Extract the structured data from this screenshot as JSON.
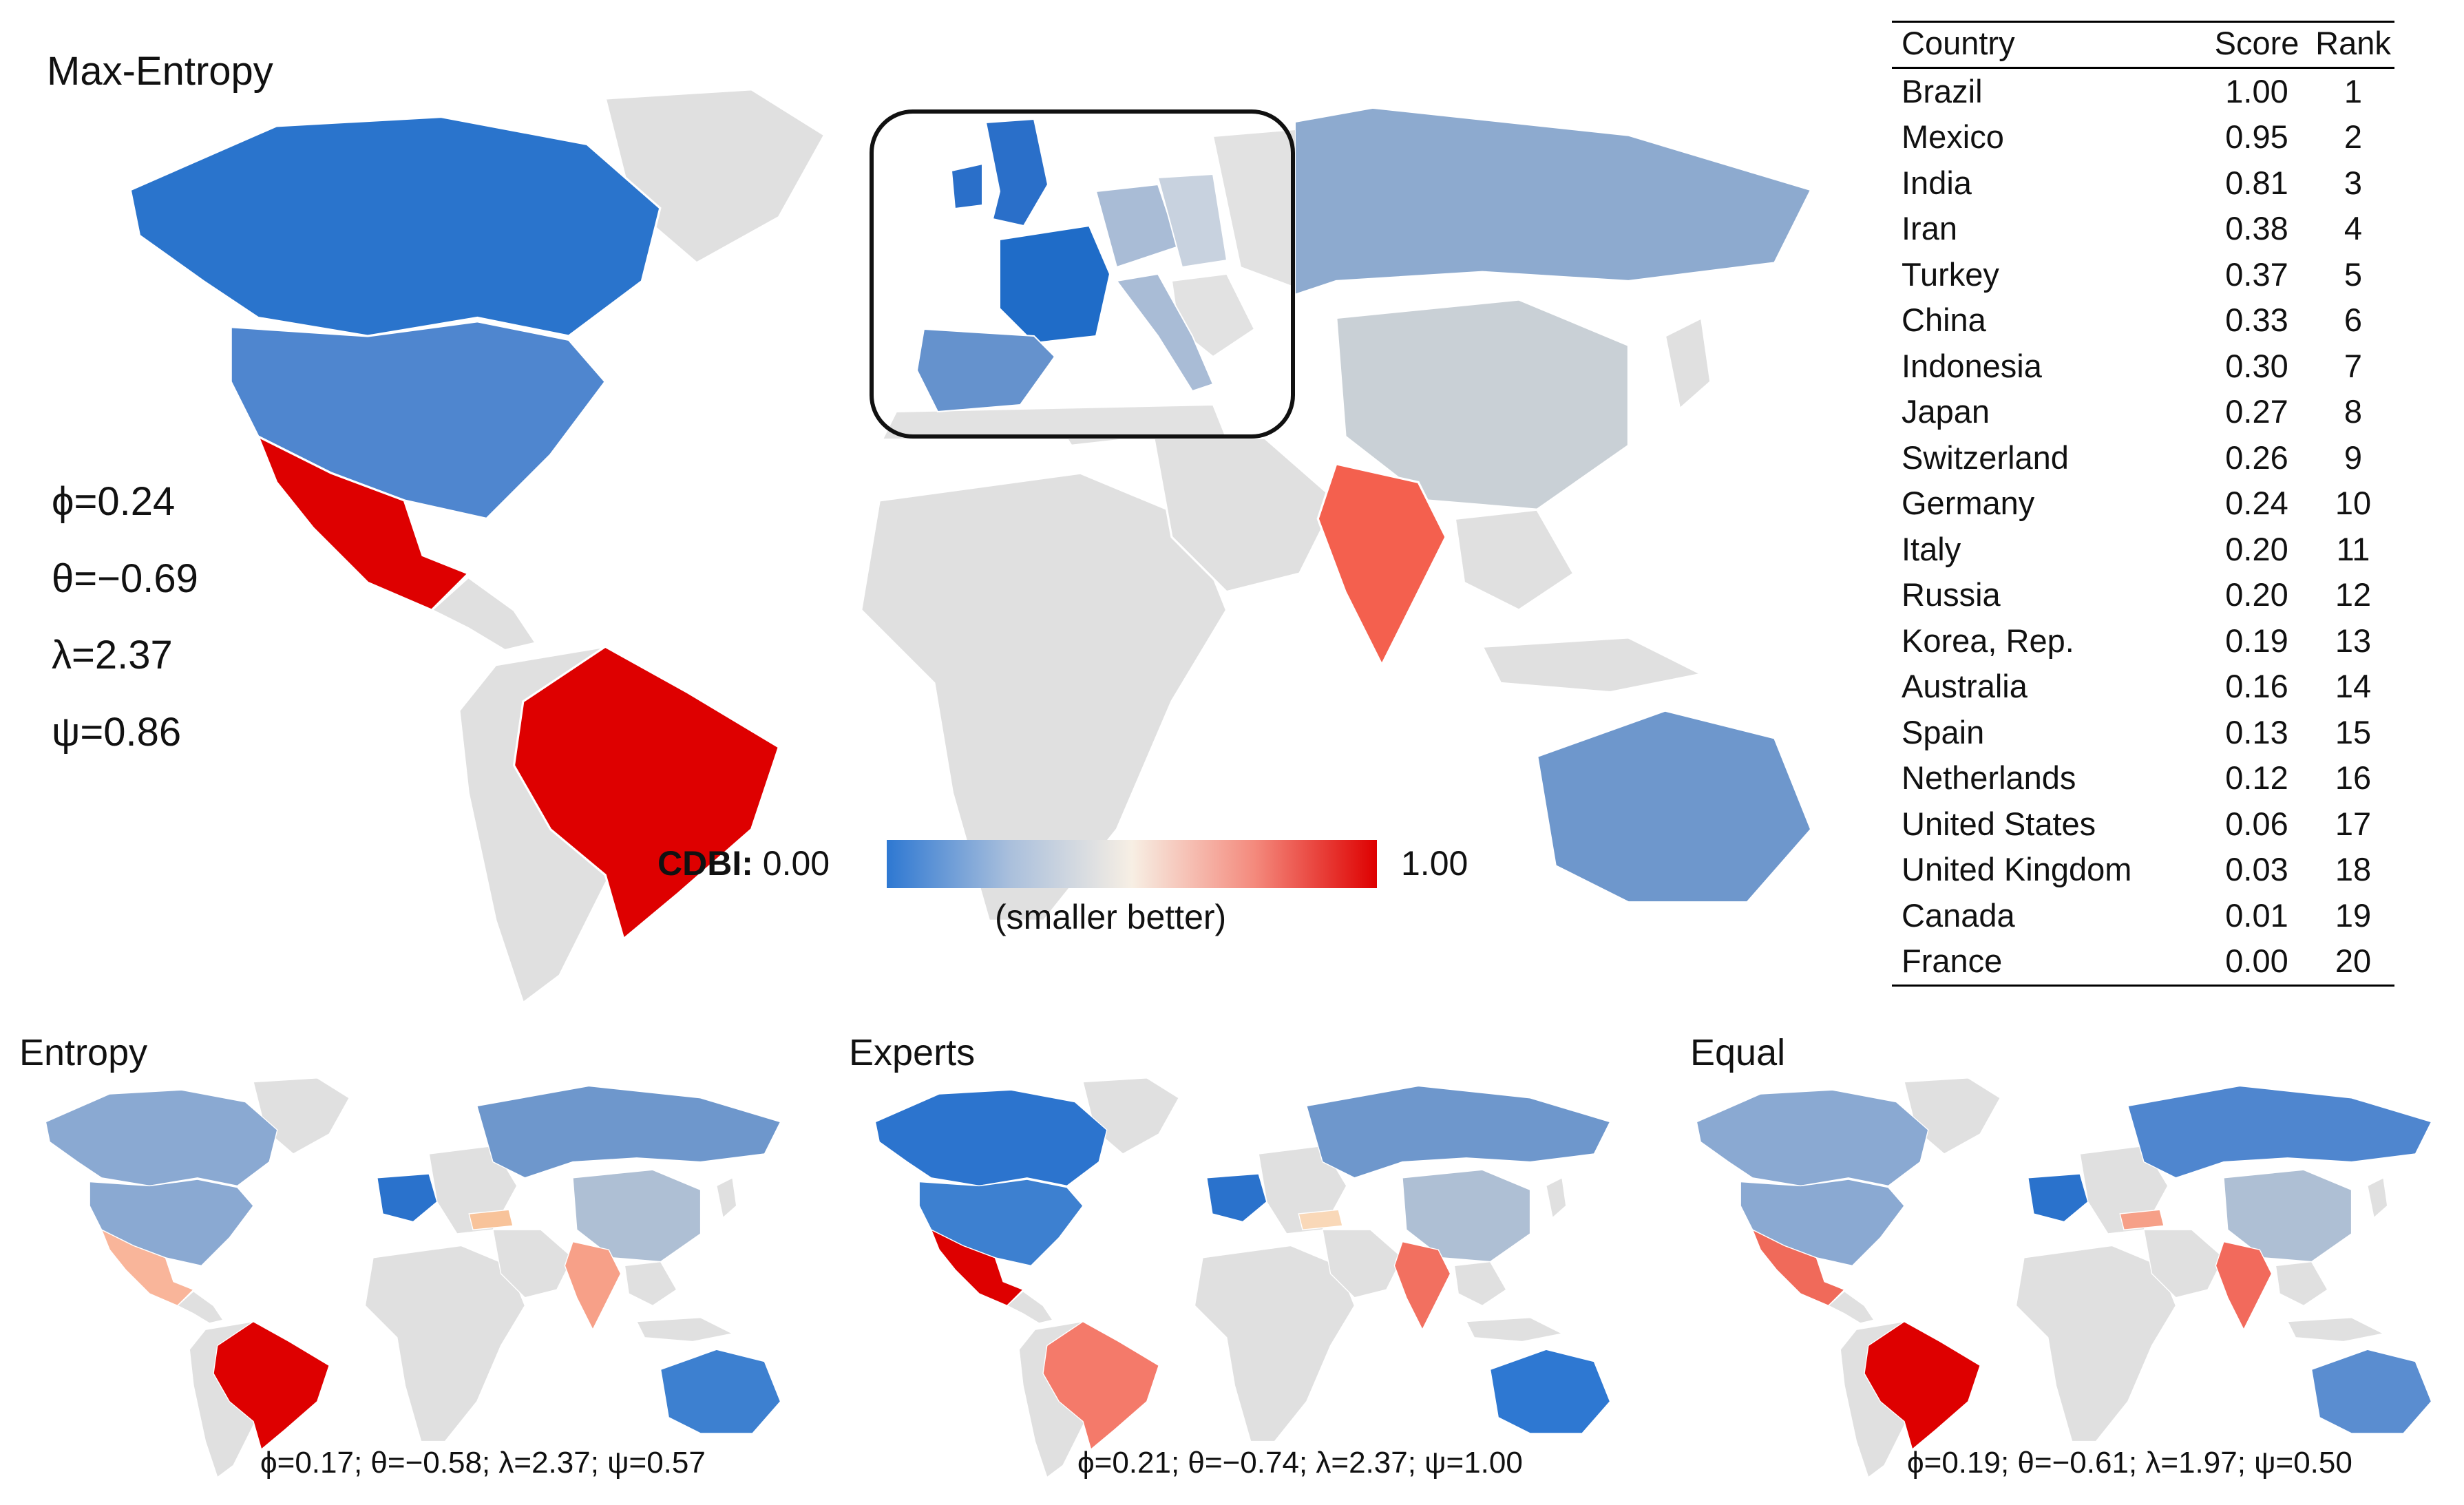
{
  "main_map": {
    "title": "Max-Entropy",
    "params": [
      "ϕ=0.24",
      "θ=−0.69",
      "λ=2.37",
      "ψ=0.86"
    ]
  },
  "legend": {
    "label": "CDBI:",
    "min": "0.00",
    "max": "1.00",
    "note": "(smaller better)",
    "gradient_colors": [
      "#2e78d2",
      "#a9bfdc",
      "#f7efe4",
      "#f48a7d",
      "#de0000"
    ]
  },
  "ranking_table": {
    "headers": [
      "Country",
      "Score",
      "Rank"
    ],
    "rows": [
      {
        "country": "Brazil",
        "score": "1.00",
        "rank": "1"
      },
      {
        "country": "Mexico",
        "score": "0.95",
        "rank": "2"
      },
      {
        "country": "India",
        "score": "0.81",
        "rank": "3"
      },
      {
        "country": "Iran",
        "score": "0.38",
        "rank": "4"
      },
      {
        "country": "Turkey",
        "score": "0.37",
        "rank": "5"
      },
      {
        "country": "China",
        "score": "0.33",
        "rank": "6"
      },
      {
        "country": "Indonesia",
        "score": "0.30",
        "rank": "7"
      },
      {
        "country": "Japan",
        "score": "0.27",
        "rank": "8"
      },
      {
        "country": "Switzerland",
        "score": "0.26",
        "rank": "9"
      },
      {
        "country": "Germany",
        "score": "0.24",
        "rank": "10"
      },
      {
        "country": "Italy",
        "score": "0.20",
        "rank": "11"
      },
      {
        "country": "Russia",
        "score": "0.20",
        "rank": "12"
      },
      {
        "country": "Korea, Rep.",
        "score": "0.19",
        "rank": "13"
      },
      {
        "country": "Australia",
        "score": "0.16",
        "rank": "14"
      },
      {
        "country": "Spain",
        "score": "0.13",
        "rank": "15"
      },
      {
        "country": "Netherlands",
        "score": "0.12",
        "rank": "16"
      },
      {
        "country": "United States",
        "score": "0.06",
        "rank": "17"
      },
      {
        "country": "United Kingdom",
        "score": "0.03",
        "rank": "18"
      },
      {
        "country": "Canada",
        "score": "0.01",
        "rank": "19"
      },
      {
        "country": "France",
        "score": "0.00",
        "rank": "20"
      }
    ]
  },
  "small_maps": [
    {
      "title": "Entropy",
      "params": "ϕ=0.17; θ=−0.58; λ=2.37; ψ=0.57",
      "colors": {
        "na_north": "#8aa9d2",
        "na_south": "#8aa9d2",
        "mexico": "#f9b59a",
        "south_america": "#e0e0e0",
        "brazil": "#de0000",
        "europe_west": "#2a72cc",
        "russia": "#6e97cc",
        "china": "#aebfd4",
        "india": "#f7a088",
        "turkey": "#f8c39a",
        "australia": "#3d80d0"
      }
    },
    {
      "title": "Experts",
      "params": "ϕ=0.21; θ=−0.74; λ=2.37; ψ=1.00",
      "colors": {
        "na_north": "#2c74ce",
        "na_south": "#3d80d0",
        "mexico": "#de0000",
        "south_america": "#e0e0e0",
        "brazil": "#f47a6a",
        "europe_west": "#2a72cc",
        "russia": "#6e97cc",
        "china": "#aebfd4",
        "india": "#f27060",
        "turkey": "#f9d8b8",
        "australia": "#2e78d2"
      }
    },
    {
      "title": "Equal",
      "params": "ϕ=0.19; θ=−0.61; λ=1.97; ψ=0.50",
      "colors": {
        "na_north": "#8aa9d2",
        "na_south": "#8aa9d2",
        "mexico": "#f06a5a",
        "south_america": "#e0e0e0",
        "brazil": "#de0000",
        "europe_west": "#2a72cc",
        "russia": "#4f86cf",
        "china": "#aebfd4",
        "india": "#f26a5c",
        "turkey": "#f6a088",
        "australia": "#5a8dd0"
      }
    }
  ],
  "main_colors": {
    "na_north": "#2a74cc",
    "na_south": "#4f86cf",
    "mexico": "#de0000",
    "south_america": "#e0e0e0",
    "brazil": "#de0000",
    "europe_west": "#2a72cc",
    "russia": "#8daacf",
    "china": "#c9d0d6",
    "india": "#f4604e",
    "turkey": "#f6c0a0",
    "australia": "#6e97cc",
    "inset_uk": "#2a6fc9",
    "inset_france": "#1f6cc8",
    "inset_spain": "#6592cd",
    "inset_germany": "#a9bcd6",
    "inset_italy": "#a9bcd6"
  }
}
